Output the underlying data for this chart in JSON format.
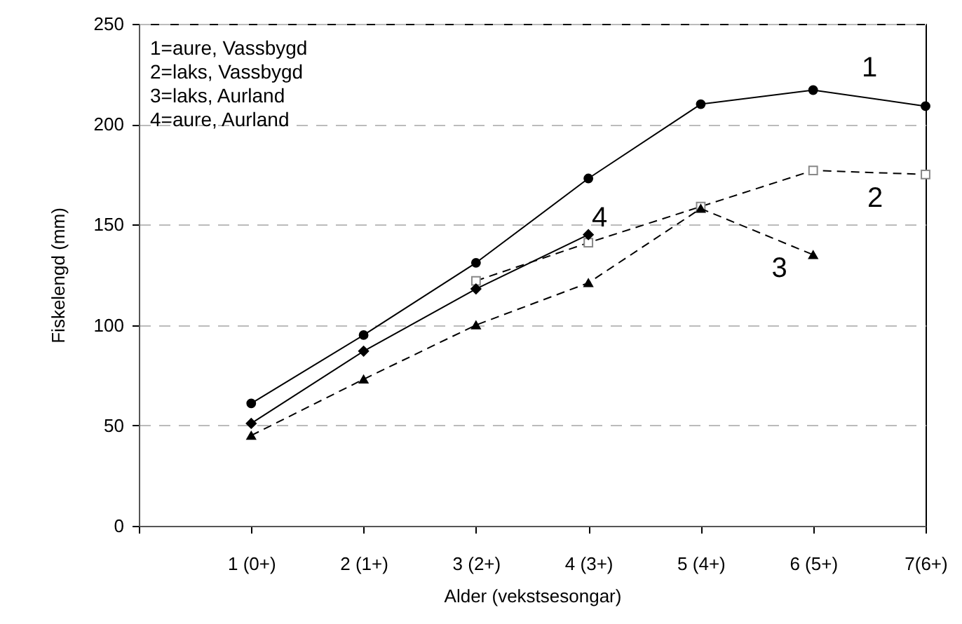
{
  "chart_data": {
    "type": "line",
    "xlabel": "Alder (vekstsesongar)",
    "ylabel": "Fiskelengd (mm)",
    "categories": [
      null,
      "1 (0+)",
      "2 (1+)",
      "3 (2+)",
      "4 (3+)",
      "5 (4+)",
      "6 (5+)",
      "7(6+)"
    ],
    "ylim": [
      0,
      250
    ],
    "yticks": [
      0,
      50,
      100,
      150,
      200,
      250
    ],
    "grid": "y",
    "series": [
      {
        "name": "1",
        "color": "#000000",
        "marker": "circle",
        "line_style": "solid",
        "values": [
          null,
          61,
          95,
          131,
          173,
          210,
          217,
          209
        ]
      },
      {
        "name": "2",
        "color": "#000000",
        "marker": "square",
        "line_style": "dashed",
        "values": [
          null,
          null,
          null,
          122,
          141,
          159,
          177,
          175
        ]
      },
      {
        "name": "3",
        "color": "#000000",
        "marker": "triangle",
        "line_style": "dashed",
        "values": [
          null,
          45,
          73,
          100,
          121,
          158,
          135,
          null
        ]
      },
      {
        "name": "4",
        "color": "#000000",
        "marker": "diamond",
        "line_style": "solid",
        "values": [
          null,
          51,
          87,
          118,
          145,
          null,
          null,
          null
        ]
      }
    ],
    "annotations": [
      "1=aure, Vassbygd",
      "2=laks, Vassbygd",
      "3=laks, Aurland",
      "4=aure, Aurland"
    ]
  }
}
